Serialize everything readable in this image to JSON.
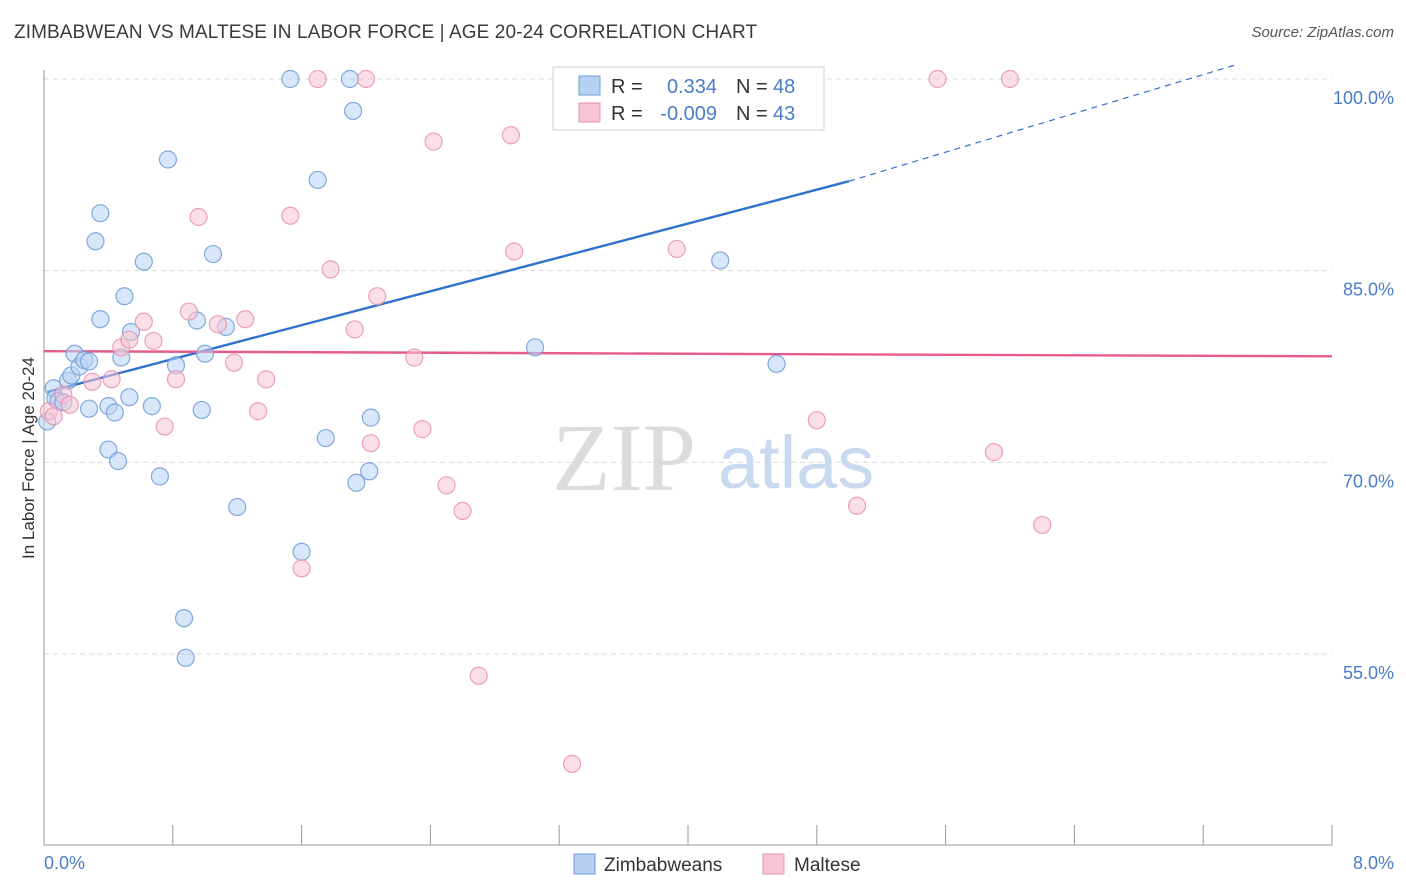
{
  "header": {
    "title": "ZIMBABWEAN VS MALTESE IN LABOR FORCE | AGE 20-24 CORRELATION CHART",
    "source": "Source: ZipAtlas.com"
  },
  "watermark": {
    "zip": "ZIP",
    "atlas": "atlas"
  },
  "colors": {
    "blue": "#4a7cc9",
    "blue_fill": "#b7d1f3",
    "blue_line": "#2f72cc",
    "pink": "#e66b98",
    "pink_fill": "#f7c4d4",
    "pink_line": "#e55b8e",
    "grid": "#d9d9d9",
    "axis": "#999999"
  },
  "legend": {
    "rows": [
      {
        "r_label": "R = ",
        "r_value": "0.334",
        "n_label": "N = ",
        "n_value": "48"
      },
      {
        "r_label": "R = ",
        "r_value": "-0.009",
        "n_label": "N = ",
        "n_value": "43"
      }
    ]
  },
  "chart_data": {
    "type": "scatter",
    "title": "ZIMBABWEAN VS MALTESE IN LABOR FORCE | AGE 20-24 CORRELATION CHART",
    "xlabel": "",
    "ylabel": "In Labor Force | Age 20-24",
    "xlim": [
      0,
      8
    ],
    "ylim": [
      41.5,
      101.5
    ],
    "x_tick_labels": [
      "0.0%",
      "8.0%"
    ],
    "y_ticks": [
      55,
      70,
      85,
      100
    ],
    "y_tick_labels": [
      "55.0%",
      "70.0%",
      "85.0%",
      "100.0%"
    ],
    "grid": true,
    "legend_position": "top-center",
    "series": [
      {
        "name": "Zimbabweans",
        "r": 0.334,
        "n": 48,
        "trend": {
          "x0": 0.02,
          "y0": 75.5,
          "x1": 5.0,
          "y1": 92.0,
          "dashed_to_x": 7.4,
          "dashed_to_y": 101.1
        },
        "points": [
          [
            0.02,
            73.2
          ],
          [
            0.06,
            75.8
          ],
          [
            0.07,
            75.0
          ],
          [
            0.09,
            74.8
          ],
          [
            0.12,
            74.7
          ],
          [
            0.15,
            76.4
          ],
          [
            0.17,
            76.8
          ],
          [
            0.19,
            78.5
          ],
          [
            0.22,
            77.5
          ],
          [
            0.25,
            78.0
          ],
          [
            0.28,
            77.9
          ],
          [
            0.28,
            74.2
          ],
          [
            0.32,
            87.3
          ],
          [
            0.35,
            89.5
          ],
          [
            0.35,
            81.2
          ],
          [
            0.4,
            74.4
          ],
          [
            0.4,
            71.0
          ],
          [
            0.44,
            73.9
          ],
          [
            0.46,
            70.1
          ],
          [
            0.48,
            78.2
          ],
          [
            0.5,
            83.0
          ],
          [
            0.53,
            75.1
          ],
          [
            0.54,
            80.2
          ],
          [
            0.62,
            85.7
          ],
          [
            0.67,
            74.4
          ],
          [
            0.72,
            68.9
          ],
          [
            0.77,
            93.7
          ],
          [
            0.82,
            77.6
          ],
          [
            0.87,
            57.8
          ],
          [
            0.88,
            54.7
          ],
          [
            0.95,
            81.1
          ],
          [
            0.98,
            74.1
          ],
          [
            1.0,
            78.5
          ],
          [
            1.05,
            86.3
          ],
          [
            1.13,
            80.6
          ],
          [
            1.2,
            66.5
          ],
          [
            1.53,
            100.0
          ],
          [
            1.6,
            63.0
          ],
          [
            1.7,
            92.1
          ],
          [
            1.75,
            71.9
          ],
          [
            1.9,
            100.0
          ],
          [
            1.92,
            97.5
          ],
          [
            1.94,
            68.4
          ],
          [
            2.02,
            69.3
          ],
          [
            2.03,
            73.5
          ],
          [
            3.05,
            79.0
          ],
          [
            4.2,
            85.8
          ],
          [
            4.55,
            77.7
          ]
        ]
      },
      {
        "name": "Maltese",
        "r": -0.009,
        "n": 43,
        "trend": {
          "x0": 0.0,
          "y0": 78.7,
          "x1": 8.0,
          "y1": 78.3
        },
        "points": [
          [
            0.03,
            74.0
          ],
          [
            0.12,
            75.3
          ],
          [
            0.16,
            74.5
          ],
          [
            0.3,
            76.3
          ],
          [
            0.42,
            76.5
          ],
          [
            0.48,
            79.0
          ],
          [
            0.53,
            79.6
          ],
          [
            0.62,
            81.0
          ],
          [
            0.68,
            79.5
          ],
          [
            0.75,
            72.8
          ],
          [
            0.82,
            76.5
          ],
          [
            0.9,
            81.8
          ],
          [
            0.96,
            89.2
          ],
          [
            1.08,
            80.8
          ],
          [
            1.18,
            77.8
          ],
          [
            1.25,
            81.2
          ],
          [
            1.33,
            74.0
          ],
          [
            1.38,
            76.5
          ],
          [
            1.53,
            89.3
          ],
          [
            1.6,
            61.7
          ],
          [
            1.7,
            100.0
          ],
          [
            1.78,
            85.1
          ],
          [
            1.93,
            80.4
          ],
          [
            2.0,
            100.0
          ],
          [
            2.07,
            83.0
          ],
          [
            2.03,
            71.5
          ],
          [
            2.3,
            78.2
          ],
          [
            2.35,
            72.6
          ],
          [
            2.42,
            95.1
          ],
          [
            2.5,
            68.2
          ],
          [
            2.6,
            66.2
          ],
          [
            2.7,
            53.3
          ],
          [
            2.9,
            95.6
          ],
          [
            2.92,
            86.5
          ],
          [
            3.28,
            46.4
          ],
          [
            3.93,
            86.7
          ],
          [
            4.8,
            73.3
          ],
          [
            5.05,
            66.6
          ],
          [
            5.55,
            100.0
          ],
          [
            5.9,
            70.8
          ],
          [
            6.0,
            100.0
          ],
          [
            6.2,
            65.1
          ],
          [
            0.06,
            73.6
          ]
        ]
      }
    ]
  }
}
